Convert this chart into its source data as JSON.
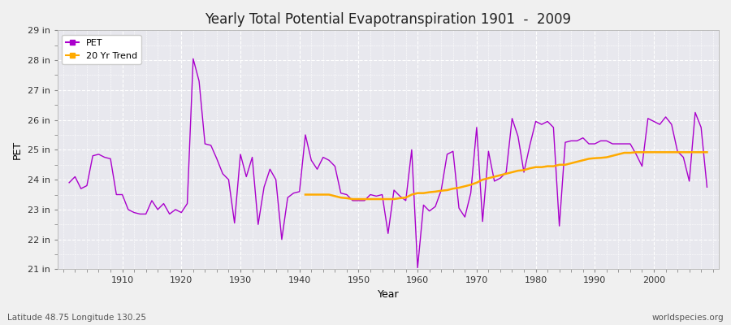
{
  "title": "Yearly Total Potential Evapotranspiration 1901  -  2009",
  "xlabel": "Year",
  "ylabel": "PET",
  "subtitle_left": "Latitude 48.75 Longitude 130.25",
  "subtitle_right": "worldspecies.org",
  "fig_bg_color": "#f0f0f0",
  "plot_bg_color": "#e8e8ee",
  "pet_color": "#aa00cc",
  "trend_color": "#ffaa00",
  "ylim": [
    21,
    29
  ],
  "ytick_labels": [
    "21 in",
    "22 in",
    "23 in",
    "24 in",
    "25 in",
    "26 in",
    "27 in",
    "28 in",
    "29 in"
  ],
  "ytick_values": [
    21,
    22,
    23,
    24,
    25,
    26,
    27,
    28,
    29
  ],
  "xlim_left": 1899,
  "xlim_right": 2011,
  "years": [
    1901,
    1902,
    1903,
    1904,
    1905,
    1906,
    1907,
    1908,
    1909,
    1910,
    1911,
    1912,
    1913,
    1914,
    1915,
    1916,
    1917,
    1918,
    1919,
    1920,
    1921,
    1922,
    1923,
    1924,
    1925,
    1926,
    1927,
    1928,
    1929,
    1930,
    1931,
    1932,
    1933,
    1934,
    1935,
    1936,
    1937,
    1938,
    1939,
    1940,
    1941,
    1942,
    1943,
    1944,
    1945,
    1946,
    1947,
    1948,
    1949,
    1950,
    1951,
    1952,
    1953,
    1954,
    1955,
    1956,
    1957,
    1958,
    1959,
    1960,
    1961,
    1962,
    1963,
    1964,
    1965,
    1966,
    1967,
    1968,
    1969,
    1970,
    1971,
    1972,
    1973,
    1974,
    1975,
    1976,
    1977,
    1978,
    1979,
    1980,
    1981,
    1982,
    1983,
    1984,
    1985,
    1986,
    1987,
    1988,
    1989,
    1990,
    1991,
    1992,
    1993,
    1994,
    1995,
    1996,
    1997,
    1998,
    1999,
    2000,
    2001,
    2002,
    2003,
    2004,
    2005,
    2006,
    2007,
    2008,
    2009
  ],
  "pet_values": [
    23.9,
    24.1,
    23.7,
    23.8,
    24.8,
    24.85,
    24.75,
    24.7,
    23.5,
    23.5,
    23.0,
    22.9,
    22.85,
    22.85,
    23.3,
    23.0,
    23.2,
    22.85,
    23.0,
    22.9,
    23.2,
    28.05,
    27.3,
    25.2,
    25.15,
    24.7,
    24.2,
    24.0,
    22.55,
    24.85,
    24.1,
    24.75,
    22.5,
    23.75,
    24.35,
    24.0,
    22.0,
    23.4,
    23.55,
    23.6,
    25.5,
    24.65,
    24.35,
    24.75,
    24.65,
    24.45,
    23.55,
    23.5,
    23.3,
    23.3,
    23.3,
    23.5,
    23.45,
    23.5,
    22.2,
    23.65,
    23.45,
    23.3,
    25.0,
    21.05,
    23.15,
    22.95,
    23.1,
    23.65,
    24.85,
    24.95,
    23.05,
    22.75,
    23.55,
    25.75,
    22.6,
    24.95,
    23.95,
    24.05,
    24.25,
    26.05,
    25.45,
    24.25,
    25.15,
    25.95,
    25.85,
    25.95,
    25.75,
    22.45,
    25.25,
    25.3,
    25.3,
    25.4,
    25.2,
    25.2,
    25.3,
    25.3,
    25.2,
    25.2,
    25.2,
    25.2,
    24.85,
    24.45,
    26.05,
    25.95,
    25.85,
    26.1,
    25.85,
    24.95,
    24.75,
    23.95,
    26.25,
    25.75,
    23.75
  ],
  "trend_years": [
    1941,
    1942,
    1943,
    1944,
    1945,
    1946,
    1947,
    1948,
    1949,
    1950,
    1951,
    1952,
    1953,
    1954,
    1955,
    1956,
    1957,
    1958,
    1959,
    1960,
    1961,
    1962,
    1963,
    1964,
    1965,
    1966,
    1967,
    1968,
    1969,
    1970,
    1971,
    1972,
    1973,
    1974,
    1975,
    1976,
    1977,
    1978,
    1979,
    1980,
    1981,
    1982,
    1983,
    1984,
    1985,
    1986,
    1987,
    1988,
    1989,
    1990,
    1991,
    1992,
    1993,
    1994,
    1995,
    1996,
    1997,
    1998,
    1999,
    2000,
    2001,
    2002,
    2003,
    2004,
    2005,
    2006,
    2007,
    2008,
    2009
  ],
  "trend_values": [
    23.5,
    23.5,
    23.5,
    23.5,
    23.5,
    23.45,
    23.4,
    23.38,
    23.35,
    23.35,
    23.35,
    23.35,
    23.35,
    23.35,
    23.35,
    23.35,
    23.38,
    23.4,
    23.5,
    23.55,
    23.55,
    23.58,
    23.6,
    23.63,
    23.65,
    23.7,
    23.73,
    23.78,
    23.83,
    23.9,
    24.0,
    24.05,
    24.1,
    24.15,
    24.2,
    24.25,
    24.3,
    24.32,
    24.38,
    24.42,
    24.42,
    24.45,
    24.45,
    24.5,
    24.5,
    24.55,
    24.6,
    24.65,
    24.7,
    24.72,
    24.73,
    24.75,
    24.8,
    24.85,
    24.9,
    24.9,
    24.92,
    24.92,
    24.92,
    24.92,
    24.92,
    24.92,
    24.92,
    24.92,
    24.92,
    24.92,
    24.92,
    24.92,
    24.92
  ]
}
